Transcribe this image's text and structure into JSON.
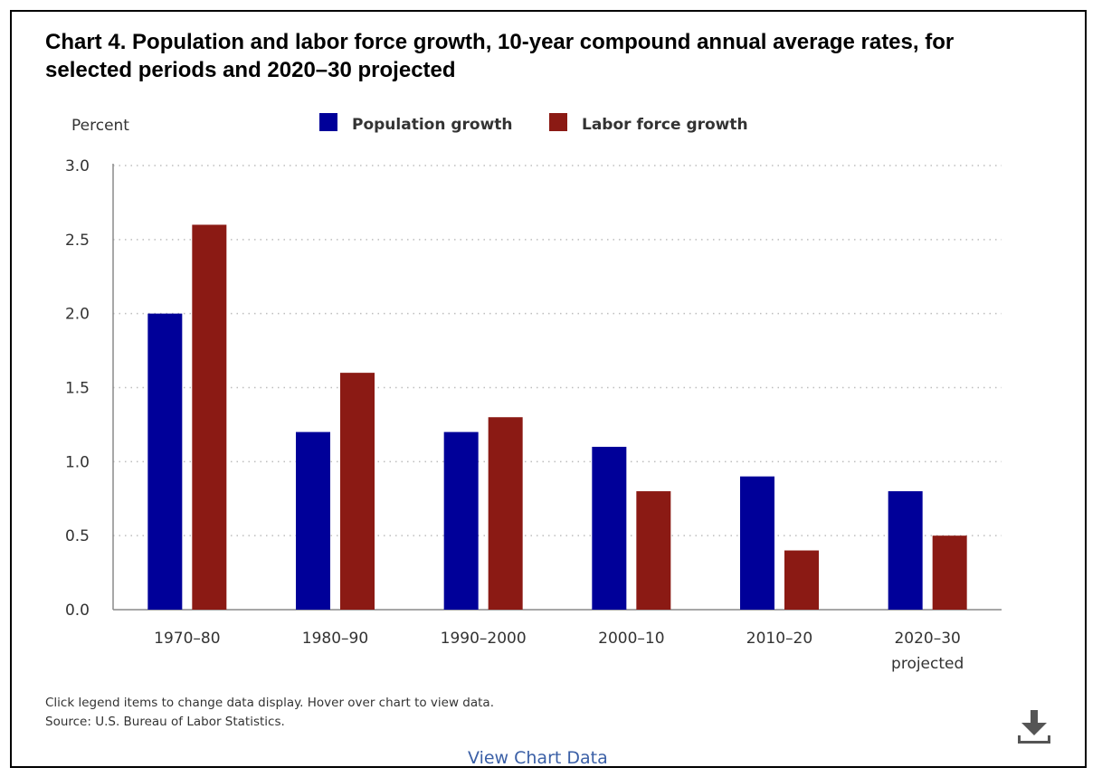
{
  "chart_data": {
    "type": "bar",
    "title": "Chart 4. Population and labor force growth, 10-year compound annual average rates, for selected periods and 2020–30 projected",
    "ylabel": "Percent",
    "xlabel": "",
    "ylim": [
      0,
      3.0
    ],
    "yticks": [
      "0.0",
      "0.5",
      "1.0",
      "1.5",
      "2.0",
      "2.5",
      "3.0"
    ],
    "ytick_values": [
      0,
      0.5,
      1.0,
      1.5,
      2.0,
      2.5,
      3.0
    ],
    "grid": true,
    "legend_position": "top",
    "categories": [
      [
        "1970–80"
      ],
      [
        "1980–90"
      ],
      [
        "1990–2000"
      ],
      [
        "2000–10"
      ],
      [
        "2010–20"
      ],
      [
        "2020–30",
        "projected"
      ]
    ],
    "series": [
      {
        "name": "Population growth",
        "color": "#000099",
        "values": [
          2.0,
          1.2,
          1.2,
          1.1,
          0.9,
          0.8
        ]
      },
      {
        "name": "Labor force growth",
        "color": "#8b1a14",
        "values": [
          2.6,
          1.6,
          1.3,
          0.8,
          0.4,
          0.5
        ]
      }
    ]
  },
  "footnote": {
    "line1": "Click legend items to change data display. Hover over chart to view data.",
    "line2": "Source: U.S. Bureau of Labor Statistics."
  },
  "download_icon": "download-icon",
  "view_chart_data_label": "View Chart Data"
}
